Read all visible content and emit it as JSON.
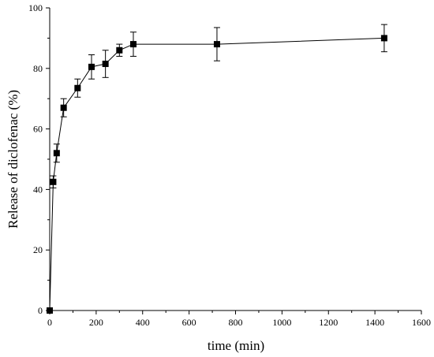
{
  "chart_data": {
    "type": "scatter",
    "title": "",
    "xlabel": "time (min)",
    "ylabel": "Release of diclofenac (%)",
    "xlim": [
      0,
      1600
    ],
    "ylim": [
      0,
      100
    ],
    "x_ticks": [
      0,
      200,
      400,
      600,
      800,
      1000,
      1200,
      1400,
      1600
    ],
    "y_ticks": [
      0,
      20,
      40,
      60,
      80,
      100
    ],
    "grid": false,
    "legend": "none",
    "connected_line": true,
    "line_color": "#000000",
    "marker": "square",
    "series": [
      {
        "x": [
          0,
          15,
          30,
          60,
          120,
          180,
          240,
          300,
          360,
          720,
          1440
        ],
        "y": [
          0,
          42.5,
          52,
          67,
          73.5,
          80.5,
          81.5,
          86,
          88,
          88,
          90
        ],
        "error": [
          0,
          2.0,
          3.0,
          3.0,
          3.0,
          4.0,
          4.5,
          2.0,
          4.0,
          5.5,
          4.5
        ]
      }
    ]
  }
}
